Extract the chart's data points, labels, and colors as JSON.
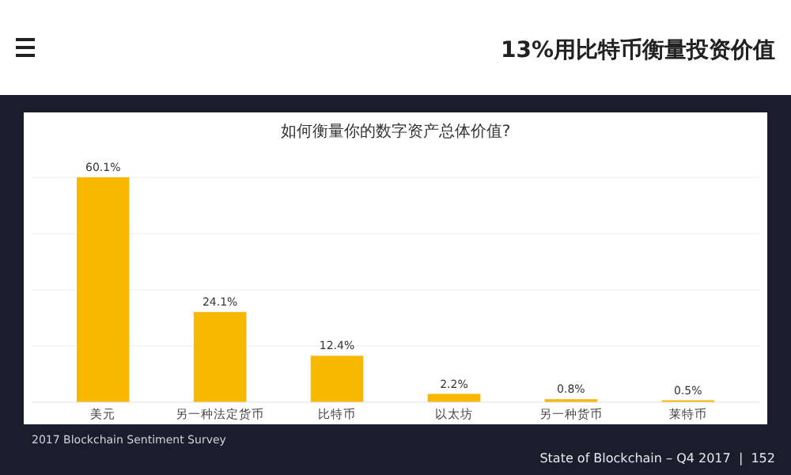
{
  "chart_data": {
    "type": "bar",
    "title": "13%用比特币衡量投资价值",
    "subtitle": "如何衡量你的数字资产总体价值?",
    "categories": [
      "美元",
      "另一种法定货币",
      "比特币",
      "以太坊",
      "另一种货币",
      "莱特币"
    ],
    "values": [
      60.1,
      24.1,
      12.4,
      2.2,
      0.8,
      0.5
    ],
    "value_labels": [
      "60.1%",
      "24.1%",
      "12.4%",
      "2.2%",
      "0.8%",
      "0.5%"
    ],
    "color": "#f9b800",
    "annotations": [
      "2017 Blockchain Sentiment Survey",
      "State of Blockchain – Q4 2017  |  152"
    ]
  }
}
